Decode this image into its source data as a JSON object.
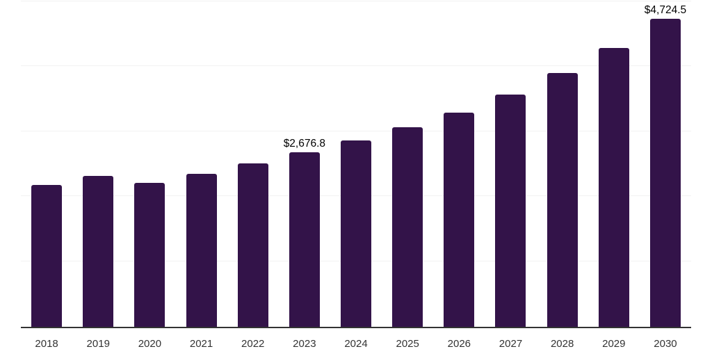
{
  "page": {
    "background": "#ffffff"
  },
  "colors": {
    "bar": "#331349",
    "axis_line": "#333333",
    "gridline": "#f2f2f2",
    "data_label_text": "#000000",
    "tick_label_text": "#333333"
  },
  "chart_data": {
    "type": "bar",
    "title": "",
    "xlabel": "",
    "ylabel": "",
    "categories": [
      "2018",
      "2019",
      "2020",
      "2021",
      "2022",
      "2023",
      "2024",
      "2025",
      "2026",
      "2027",
      "2028",
      "2029",
      "2030"
    ],
    "values": [
      2180,
      2310,
      2210,
      2350,
      2510,
      2676.8,
      2855,
      3055,
      3280,
      3560,
      3890,
      4275,
      4724.5
    ],
    "data_labels": [
      "",
      "",
      "",
      "",
      "",
      "$2,676.8",
      "",
      "",
      "",
      "",
      "",
      "",
      "$4,724.5"
    ],
    "ylim": [
      0,
      5000
    ],
    "gridline_values": [
      1000,
      2000,
      3000,
      4000,
      5000
    ],
    "grid": "horizontal-faint",
    "legend": "none",
    "y_axis_tick_labels_visible": false
  }
}
